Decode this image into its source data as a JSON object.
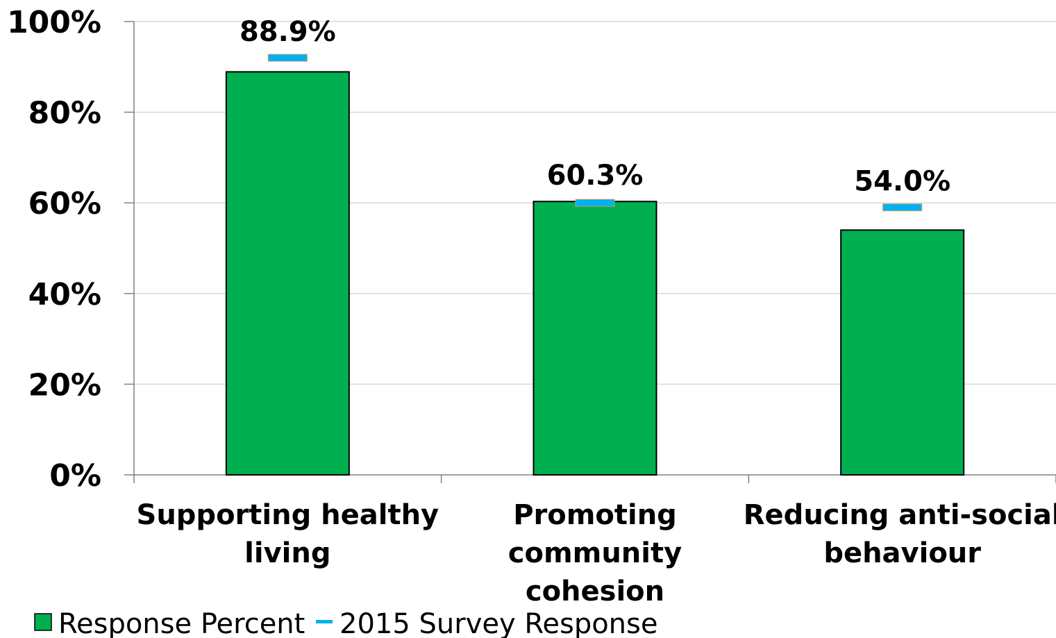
{
  "chart_data": {
    "type": "bar",
    "categories": [
      [
        "Supporting healthy",
        "living"
      ],
      [
        "Promoting",
        "community",
        "cohesion"
      ],
      [
        "Reducing anti-social",
        "behaviour"
      ]
    ],
    "series": [
      {
        "name": "Response Percent",
        "type": "bar",
        "values": [
          88.9,
          60.3,
          54.0
        ],
        "color": "#00b050"
      },
      {
        "name": "2015 Survey Response",
        "type": "marker",
        "values": [
          92,
          60,
          59
        ],
        "color": "#00b0f0"
      }
    ],
    "data_labels": [
      "88.9%",
      "60.3%",
      "54.0%"
    ],
    "y_ticks": [
      "0%",
      "20%",
      "40%",
      "60%",
      "80%",
      "100%"
    ],
    "ylim": [
      0,
      100
    ],
    "grid": true,
    "legend_position": "bottom-left"
  }
}
